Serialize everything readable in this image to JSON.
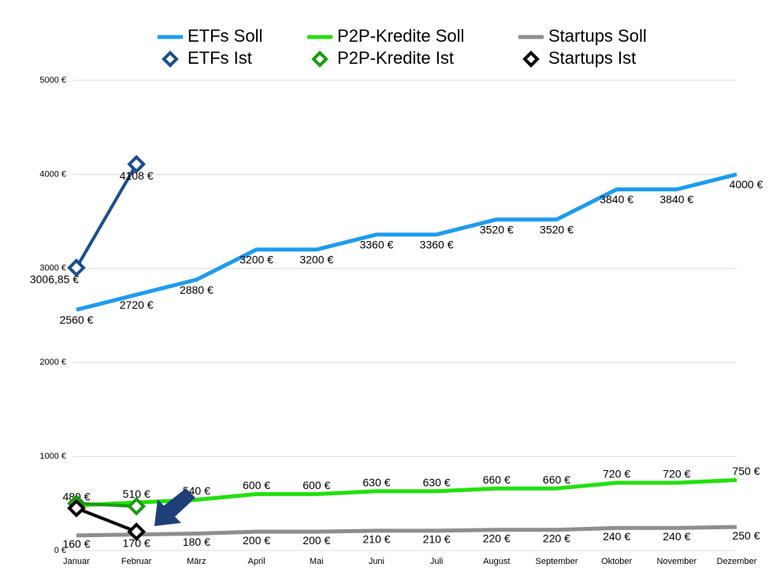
{
  "chart_data": {
    "type": "line",
    "categories": [
      "Januar",
      "Februar",
      "März",
      "April",
      "Mai",
      "Juni",
      "Juli",
      "August",
      "September",
      "Oktober",
      "November",
      "Dezember"
    ],
    "ylim": [
      0,
      5000
    ],
    "yticks": [
      {
        "value": 0,
        "label": "0 €"
      },
      {
        "value": 1000,
        "label": "1000 €"
      },
      {
        "value": 2000,
        "label": "2000 €"
      },
      {
        "value": 3000,
        "label": "3000 €"
      },
      {
        "value": 4000,
        "label": "4000 €"
      },
      {
        "value": 5000,
        "label": "5000 €"
      }
    ],
    "grid": true,
    "legend": "top",
    "series": [
      {
        "name": "ETFs Soll",
        "color": "#1e9bee",
        "marker": "none",
        "values": [
          2560,
          2720,
          2880,
          3200,
          3200,
          3360,
          3360,
          3520,
          3520,
          3840,
          3840,
          4000
        ],
        "value_labels": [
          "2560 €",
          "2720 €",
          "2880 €",
          "3200 €",
          "3200 €",
          "3360 €",
          "3360 €",
          "3520 €",
          "3520 €",
          "3840 €",
          "3840 €",
          "4000 €"
        ]
      },
      {
        "name": "P2P-Kredite Soll",
        "color": "#22e010",
        "marker": "none",
        "values": [
          480,
          510,
          540,
          600,
          600,
          630,
          630,
          660,
          660,
          720,
          720,
          750
        ],
        "value_labels": [
          "480 €",
          "510 €",
          "540 €",
          "600 €",
          "600 €",
          "630 €",
          "630 €",
          "660 €",
          "660 €",
          "720 €",
          "720 €",
          "750 €"
        ]
      },
      {
        "name": "Startups Soll",
        "color": "#8e8e8e",
        "marker": "none",
        "values": [
          160,
          170,
          180,
          200,
          200,
          210,
          210,
          220,
          220,
          240,
          240,
          250
        ],
        "value_labels": [
          "160 €",
          "170 €",
          "180 €",
          "200 €",
          "200 €",
          "210 €",
          "210 €",
          "220 €",
          "220 €",
          "240 €",
          "240 €",
          "250 €"
        ]
      },
      {
        "name": "ETFs Ist",
        "color": "#1a4f8c",
        "marker": "diamond",
        "values": [
          3006.85,
          4108,
          null,
          null,
          null,
          null,
          null,
          null,
          null,
          null,
          null,
          null
        ],
        "value_labels": [
          "3006,85 €",
          "4108 €",
          null,
          null,
          null,
          null,
          null,
          null,
          null,
          null,
          null,
          null
        ]
      },
      {
        "name": "P2P-Kredite Ist",
        "color": "#1a9a10",
        "marker": "diamond",
        "values": [
          500,
          470,
          null,
          null,
          null,
          null,
          null,
          null,
          null,
          null,
          null,
          null
        ]
      },
      {
        "name": "Startups Ist",
        "color": "#000000",
        "marker": "diamond",
        "values": [
          450,
          200,
          null,
          null,
          null,
          null,
          null,
          null,
          null,
          null,
          null,
          null
        ]
      }
    ]
  }
}
